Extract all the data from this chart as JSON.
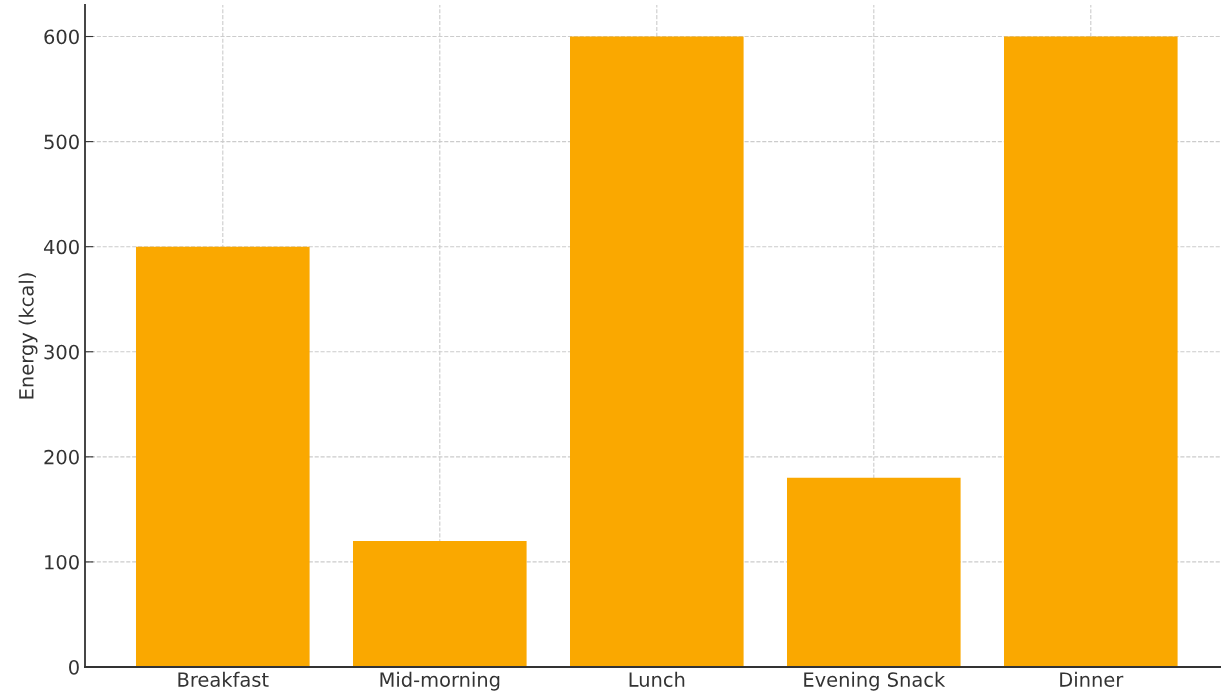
{
  "chart_data": {
    "type": "bar",
    "ylabel": "Energy (kcal)",
    "categories": [
      "Breakfast",
      "Mid-morning",
      "Lunch",
      "Evening Snack",
      "Dinner"
    ],
    "values": [
      400,
      120,
      600,
      180,
      600
    ],
    "color": "#faa800",
    "ylim": [
      0,
      630
    ],
    "yticks": [
      0,
      100,
      200,
      300,
      400,
      500,
      600
    ],
    "grid": true
  }
}
